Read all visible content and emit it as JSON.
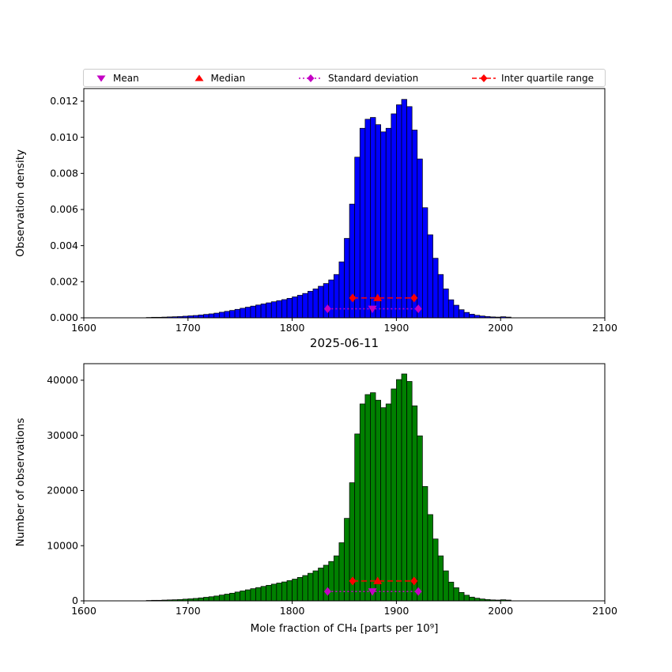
{
  "figure": {
    "legend": [
      {
        "label": "Mean",
        "marker": "triangle-down"
      },
      {
        "label": "Median",
        "marker": "triangle-up"
      },
      {
        "label": "Standard deviation",
        "marker": "diamond-dotted-line"
      },
      {
        "label": "Inter quartile range",
        "marker": "diamond-dashed-line"
      }
    ]
  },
  "colors": {
    "magenta": "#c400c4",
    "red": "#ff0000",
    "top_bar": "#0000ff",
    "bottom_bar": "#008000"
  },
  "chart_data": [
    {
      "type": "bar",
      "title": "",
      "xlabel": "2025-06-11",
      "ylabel": "Observation density",
      "xlim": [
        1600,
        2100
      ],
      "ylim": [
        0,
        0.0127
      ],
      "xticks": [
        1600,
        1700,
        1800,
        1900,
        2000,
        2100
      ],
      "xtick_labels": [
        "1600",
        "1700",
        "1800",
        "1900",
        "2000",
        "2100"
      ],
      "yticks": [
        0,
        0.002,
        0.004,
        0.006,
        0.008,
        0.01,
        0.012
      ],
      "ytick_labels": [
        "0.000",
        "0.002",
        "0.004",
        "0.006",
        "0.008",
        "0.010",
        "0.012"
      ],
      "bar_color": "#0000ff",
      "bin_start": 1660,
      "bin_width": 5,
      "values": [
        2e-05,
        3e-05,
        3e-05,
        4e-05,
        5e-05,
        6e-05,
        7e-05,
        9e-05,
        0.00011,
        0.00013,
        0.00016,
        0.00019,
        0.00022,
        0.00026,
        0.00031,
        0.00036,
        0.00041,
        0.00047,
        0.00053,
        0.00059,
        0.00065,
        0.00071,
        0.00077,
        0.00083,
        0.00089,
        0.00095,
        0.00101,
        0.00108,
        0.00116,
        0.00125,
        0.00135,
        0.00147,
        0.0016,
        0.00175,
        0.0019,
        0.0021,
        0.0024,
        0.0031,
        0.0044,
        0.0063,
        0.0089,
        0.0105,
        0.011,
        0.0111,
        0.0107,
        0.0103,
        0.0105,
        0.0113,
        0.0118,
        0.0121,
        0.0117,
        0.0104,
        0.0088,
        0.0061,
        0.0046,
        0.0033,
        0.0024,
        0.0016,
        0.001,
        0.0007,
        0.00045,
        0.0003,
        0.0002,
        0.00014,
        0.0001,
        7e-05,
        5e-05,
        4e-05,
        6e-05,
        4e-05
      ],
      "stats": {
        "mean": 1877,
        "median": 1882,
        "std_range": [
          1834,
          1921
        ],
        "iqr": [
          1858,
          1917
        ],
        "std_y": 0.0005,
        "iqr_y": 0.0011
      }
    },
    {
      "type": "bar",
      "title": "",
      "xlabel": "Mole fraction of CH₄ [parts per 10⁹]",
      "ylabel": "Number of observations",
      "xlim": [
        1600,
        2100
      ],
      "ylim": [
        0,
        43000
      ],
      "xticks": [
        1600,
        1700,
        1800,
        1900,
        2000,
        2100
      ],
      "xtick_labels": [
        "1600",
        "1700",
        "1800",
        "1900",
        "2000",
        "2100"
      ],
      "yticks": [
        0,
        10000,
        20000,
        30000,
        40000
      ],
      "ytick_labels": [
        "0",
        "10000",
        "20000",
        "30000",
        "40000"
      ],
      "bar_color": "#008000",
      "bin_start": 1660,
      "bin_width": 5,
      "values": [
        70,
        100,
        100,
        140,
        170,
        200,
        240,
        310,
        370,
        440,
        540,
        650,
        750,
        880,
        1050,
        1220,
        1390,
        1600,
        1800,
        2000,
        2210,
        2410,
        2620,
        2820,
        3030,
        3230,
        3430,
        3670,
        3940,
        4250,
        4590,
        5000,
        5440,
        5950,
        6460,
        7140,
        8160,
        10540,
        14960,
        21420,
        30260,
        35700,
        37400,
        37740,
        36380,
        35020,
        35700,
        38420,
        40120,
        41140,
        39780,
        35360,
        29920,
        20740,
        15640,
        11220,
        8160,
        5440,
        3400,
        2380,
        1530,
        1020,
        680,
        480,
        340,
        240,
        170,
        140,
        200,
        140
      ],
      "stats": {
        "mean": 1877,
        "median": 1882,
        "std_range": [
          1834,
          1921
        ],
        "iqr": [
          1858,
          1917
        ],
        "std_y": 1700,
        "iqr_y": 3600
      }
    }
  ]
}
